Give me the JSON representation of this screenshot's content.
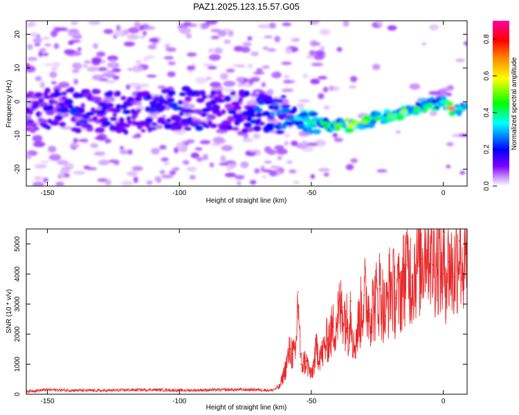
{
  "figure": {
    "title": "PAZ1.2025.123.15.57.G05"
  },
  "chart_data": [
    {
      "type": "heatmap",
      "title": "PAZ1.2025.123.15.57.G05",
      "xlabel": "Height of straight line (km)",
      "ylabel": "Frequency (Hz)",
      "xlim": [
        -158,
        9
      ],
      "ylim": [
        -25,
        24
      ],
      "xticks": [
        -150,
        -100,
        -50,
        0
      ],
      "yticks": [
        -20,
        -10,
        0,
        10,
        20
      ],
      "xtick_labels": [
        "-150",
        "-100",
        "-50",
        "0"
      ],
      "ytick_labels": [
        "-20",
        "-10",
        "0",
        "10",
        "20"
      ],
      "colorbar": {
        "label": "Normalized spectral amplitude",
        "range": [
          0,
          0.9
        ],
        "ticks": [
          0,
          0.2,
          0.4,
          0.6,
          0.8
        ],
        "tick_labels": [
          "0.0",
          "0.2",
          "0.4",
          "0.6",
          "0.8"
        ],
        "colors": [
          "#ffffff",
          "#8000ff",
          "#0000ff",
          "#00ffff",
          "#00ff00",
          "#ffff00",
          "#ff8000",
          "#ff0000",
          "#ff00ff"
        ]
      },
      "ridge": {
        "x": [
          -158,
          -150,
          -140,
          -130,
          -120,
          -110,
          -100,
          -90,
          -80,
          -70,
          -62,
          -55,
          -50,
          -45,
          -40,
          -35,
          -30,
          -25,
          -20,
          -15,
          -10,
          -5,
          0,
          3,
          6,
          9
        ],
        "y": [
          -3,
          -2,
          -2.5,
          -3,
          -3,
          -2.5,
          -2,
          -2.5,
          -3,
          -2.5,
          -3,
          -5,
          -6,
          -6.5,
          -7,
          -7,
          -6,
          -5,
          -4,
          -3,
          -2,
          -1,
          0,
          -2,
          -2,
          -1
        ],
        "amplitude": [
          0.15,
          0.22,
          0.25,
          0.22,
          0.22,
          0.25,
          0.25,
          0.22,
          0.22,
          0.28,
          0.32,
          0.38,
          0.45,
          0.5,
          0.55,
          0.62,
          0.58,
          0.5,
          0.55,
          0.6,
          0.52,
          0.45,
          0.4,
          0.78,
          0.42,
          0.35
        ]
      }
    },
    {
      "type": "line",
      "xlabel": "Height of straight line (km)",
      "ylabel": "SNR (10 * v/v)",
      "xlim": [
        -158,
        9
      ],
      "ylim": [
        0,
        5500
      ],
      "xticks": [
        -150,
        -100,
        -50,
        0
      ],
      "yticks": [
        0,
        1000,
        2000,
        3000,
        4000,
        5000
      ],
      "xtick_labels": [
        "-150",
        "-100",
        "-50",
        "0"
      ],
      "ytick_labels": [
        "0",
        "1000",
        "2000",
        "3000",
        "4000",
        "5000"
      ],
      "series": [
        {
          "color": "#e8292a",
          "x": [
            -158,
            -150,
            -140,
            -130,
            -120,
            -110,
            -100,
            -90,
            -80,
            -70,
            -65,
            -62,
            -60,
            -58,
            -56,
            -55,
            -54,
            -52,
            -50,
            -48,
            -46,
            -44,
            -42,
            -40,
            -38,
            -36,
            -35,
            -34,
            -32,
            -30,
            -28,
            -26,
            -24,
            -22,
            -20,
            -18,
            -16,
            -14,
            -12,
            -10,
            -8,
            -6,
            -4,
            -2,
            0,
            2,
            4,
            6,
            8,
            9
          ],
          "y": [
            100,
            150,
            130,
            120,
            140,
            150,
            130,
            140,
            150,
            150,
            130,
            250,
            800,
            1500,
            1200,
            3400,
            1000,
            1100,
            600,
            1500,
            1300,
            1800,
            2100,
            2600,
            2900,
            2200,
            3100,
            1500,
            2400,
            3300,
            2800,
            3000,
            3500,
            2600,
            3700,
            3200,
            3500,
            4300,
            3900,
            4400,
            4500,
            5500,
            4300,
            4700,
            4000,
            4400,
            3900,
            5100,
            4100,
            4300
          ]
        }
      ]
    }
  ]
}
